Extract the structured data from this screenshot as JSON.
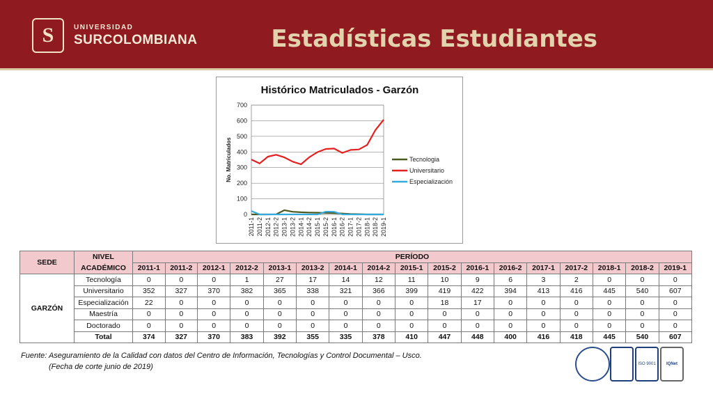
{
  "header": {
    "university_sup": "UNIVERSIDAD",
    "university_main": "SURCOLOMBIANA",
    "logo_letter": "S",
    "title": "Estadísticas Estudiantes"
  },
  "colors": {
    "header_bg": "#8f1a1f",
    "table_header_bg": "#f2c9cc",
    "tecnologia": "#4a5a1e",
    "universitario": "#e31f1f",
    "especializacion": "#33aadd"
  },
  "chart_data": {
    "type": "line",
    "title": "Histórico Matriculados - Garzón",
    "xlabel": "",
    "ylabel": "No. Matriculados",
    "ylim": [
      0,
      700
    ],
    "yticks": [
      0,
      100,
      200,
      300,
      400,
      500,
      600,
      700
    ],
    "grid": true,
    "legend": "right",
    "categories": [
      "2011-1",
      "2011-2",
      "2012-1",
      "2012-2",
      "2013-1",
      "2013-2",
      "2014-1",
      "2014-2",
      "2015-1",
      "2015-2",
      "2016-1",
      "2016-2",
      "2017-1",
      "2017-2",
      "2018-1",
      "2018-2",
      "2019-1"
    ],
    "series": [
      {
        "name": "Tecnologia",
        "color": "#4a5a1e",
        "values": [
          0,
          0,
          0,
          1,
          27,
          17,
          14,
          12,
          11,
          10,
          9,
          6,
          3,
          2,
          0,
          0,
          0
        ]
      },
      {
        "name": "Universitario",
        "color": "#e31f1f",
        "values": [
          352,
          327,
          370,
          382,
          365,
          338,
          321,
          366,
          399,
          419,
          422,
          394,
          413,
          416,
          445,
          540,
          607
        ]
      },
      {
        "name": "Especialización",
        "color": "#33aadd",
        "values": [
          22,
          0,
          0,
          0,
          0,
          0,
          0,
          0,
          0,
          18,
          17,
          0,
          0,
          0,
          0,
          0,
          0
        ]
      }
    ]
  },
  "table": {
    "sede_header": "SEDE",
    "nivel_header_1": "NIVEL",
    "nivel_header_2": "ACADÉMICO",
    "periodo_header": "PERÍODO",
    "periods": [
      "2011-1",
      "2011-2",
      "2012-1",
      "2012-2",
      "2013-1",
      "2013-2",
      "2014-1",
      "2014-2",
      "2015-1",
      "2015-2",
      "2016-1",
      "2016-2",
      "2017-1",
      "2017-2",
      "2018-1",
      "2018-2",
      "2019-1"
    ],
    "sede": "GARZÓN",
    "rows": [
      {
        "label": "Tecnología",
        "values": [
          "0",
          "0",
          "0",
          "1",
          "27",
          "17",
          "14",
          "12",
          "11",
          "10",
          "9",
          "6",
          "3",
          "2",
          "0",
          "0",
          "0"
        ]
      },
      {
        "label": "Universitario",
        "values": [
          "352",
          "327",
          "370",
          "382",
          "365",
          "338",
          "321",
          "366",
          "399",
          "419",
          "422",
          "394",
          "413",
          "416",
          "445",
          "540",
          "607"
        ]
      },
      {
        "label": "Especialización",
        "values": [
          "22",
          "0",
          "0",
          "0",
          "0",
          "0",
          "0",
          "0",
          "0",
          "18",
          "17",
          "0",
          "0",
          "0",
          "0",
          "0",
          "0"
        ]
      },
      {
        "label": "Maestría",
        "values": [
          "0",
          "0",
          "0",
          "0",
          "0",
          "0",
          "0",
          "0",
          "0",
          "0",
          "0",
          "0",
          "0",
          "0",
          "0",
          "0",
          "0"
        ]
      },
      {
        "label": "Doctorado",
        "values": [
          "0",
          "0",
          "0",
          "0",
          "0",
          "0",
          "0",
          "0",
          "0",
          "0",
          "0",
          "0",
          "0",
          "0",
          "0",
          "0",
          "0"
        ]
      }
    ],
    "total": {
      "label": "Total",
      "values": [
        "374",
        "327",
        "370",
        "383",
        "392",
        "355",
        "335",
        "378",
        "410",
        "447",
        "448",
        "400",
        "416",
        "418",
        "445",
        "540",
        "607"
      ]
    }
  },
  "source": {
    "line1": "Fuente: Aseguramiento de la Calidad con datos del Centro de Información, Tecnologías y Control Documental – Usco.",
    "line2": "(Fecha de corte junio de 2019)"
  },
  "certifications": {
    "icontec_label": "ISO 9001",
    "iqnet_label": "IQNet"
  }
}
